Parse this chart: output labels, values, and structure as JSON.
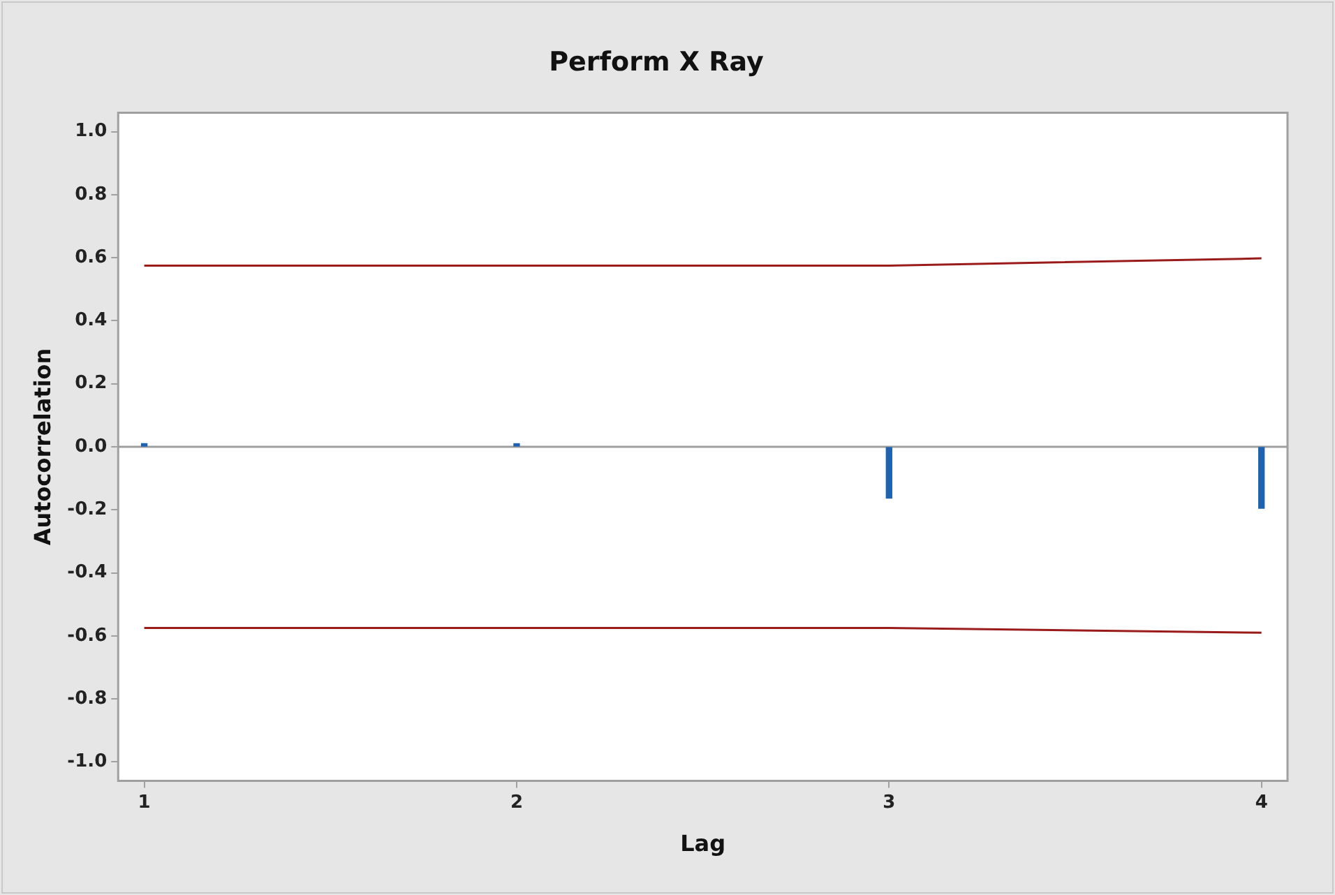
{
  "chart_data": {
    "type": "bar",
    "title": "Perform X Ray",
    "xlabel": "Lag",
    "ylabel": "Autocorrelation",
    "x": [
      1,
      2,
      3,
      4
    ],
    "series": [
      {
        "color": "#1f62b0",
        "values": [
          0.01,
          0.01,
          -0.163,
          -0.195
        ]
      },
      {
        "type": "line",
        "color": "#9b1b1b",
        "x": [
          1,
          2,
          3,
          4
        ],
        "values": [
          0.575,
          0.575,
          0.575,
          0.598
        ]
      },
      {
        "type": "line",
        "color": "#9b1b1b",
        "x": [
          1,
          2,
          3,
          4
        ],
        "values": [
          -0.575,
          -0.575,
          -0.575,
          -0.59
        ]
      }
    ],
    "ref_lines": [
      {
        "axis": "y",
        "value": 0,
        "color": "#9e9e9e"
      }
    ],
    "xlim": [
      0.93,
      4.07
    ],
    "xticks": [
      1,
      2,
      3,
      4
    ],
    "ylim": [
      -1.06,
      1.06
    ],
    "yticks": [
      {
        "value": -1,
        "label": "-1.0"
      },
      {
        "value": -0.8,
        "label": "-0.8"
      },
      {
        "value": -0.6,
        "label": "-0.6"
      },
      {
        "value": -0.4,
        "label": "-0.4"
      },
      {
        "value": -0.2,
        "label": "-0.2"
      },
      {
        "value": 0,
        "label": "0.0"
      },
      {
        "value": 0.2,
        "label": "0.2"
      },
      {
        "value": 0.4,
        "label": "0.4"
      },
      {
        "value": 0.6,
        "label": "0.6"
      },
      {
        "value": 0.8,
        "label": "0.8"
      },
      {
        "value": 1,
        "label": "1.0"
      }
    ],
    "grid": false,
    "legend": false,
    "line_style": "solid",
    "marker": "none"
  }
}
